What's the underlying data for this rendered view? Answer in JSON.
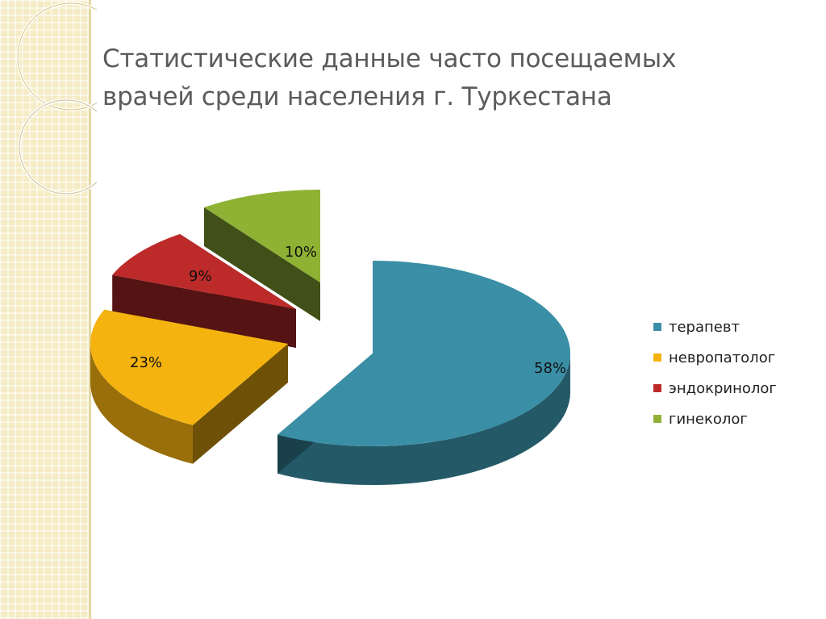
{
  "slide": {
    "title_line1": "Статистические данные часто посещаемых",
    "title_line2": "врачей среди населения г. Туркестана"
  },
  "chart_data": {
    "type": "pie",
    "style": "3d-exploded",
    "title": "",
    "legend_position": "right",
    "slices": [
      {
        "name": "терапевт",
        "value": 58,
        "label": "58%",
        "color": "#3a8fa6"
      },
      {
        "name": "невропатолог",
        "value": 23,
        "label": "23%",
        "color": "#f5b310"
      },
      {
        "name": "эндокринолог",
        "value": 9,
        "label": "9%",
        "color": "#bc2b2a"
      },
      {
        "name": "гинеколог",
        "value": 10,
        "label": "10%",
        "color": "#8fb235"
      }
    ]
  }
}
